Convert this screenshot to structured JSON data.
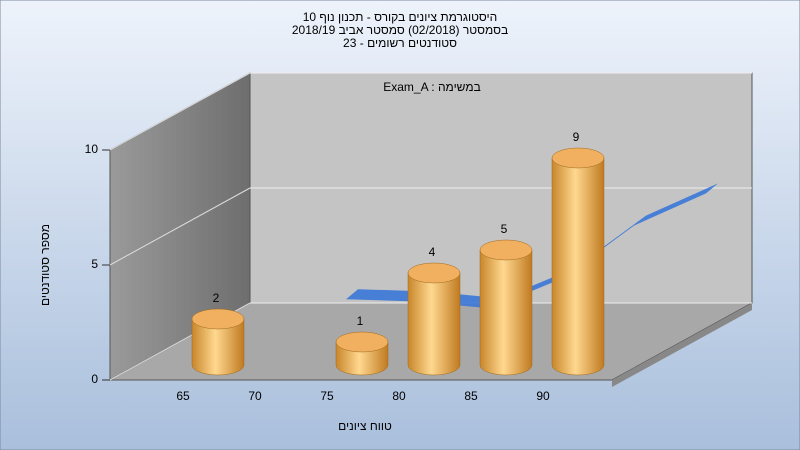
{
  "chart_data": {
    "type": "bar3d",
    "title": [
      "היסטוגרמת ציונים בקורס - תכנון נוף 10",
      "בסמסטר  (02/2018)  סמסטר אביב 2018/19",
      "סטודנטים רשומים - 23"
    ],
    "annotation": "Exam_A : במשימה",
    "xlabel": "טווח ציונים",
    "ylabel": "מספר סטודנטים",
    "categories": [
      "65",
      "70",
      "75",
      "80",
      "85",
      "90"
    ],
    "values": [
      2,
      0,
      1,
      4,
      5,
      9
    ],
    "color": "#f0b060",
    "curve": {
      "values": [
        0.6,
        0.5,
        0.2,
        1.5,
        3.8,
        5.2
      ],
      "color": "#3a78d8"
    },
    "ylim": [
      0,
      10
    ],
    "yticks": [
      0,
      5,
      10
    ],
    "grid": true
  }
}
